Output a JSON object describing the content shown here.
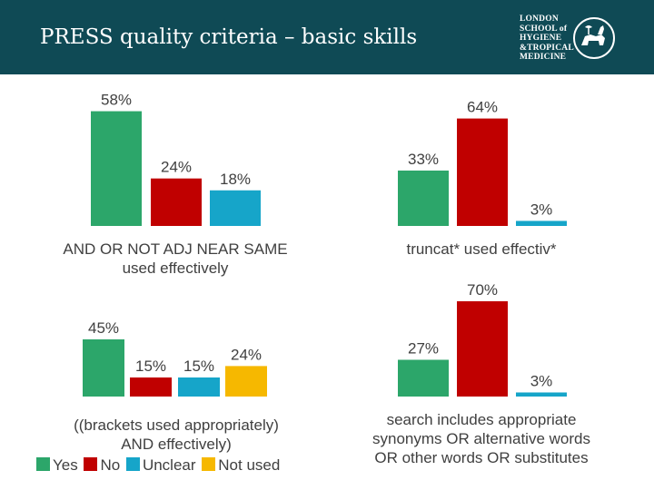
{
  "slide": {
    "title": "PRESS quality criteria – basic skills",
    "logo": {
      "lines": [
        "LONDON",
        "SCHOOL of",
        "HYGIENE",
        "&TROPICAL",
        "MEDICINE"
      ],
      "icon": "lshtm-crest-icon"
    }
  },
  "legend": [
    {
      "label": "Yes",
      "color": "#2ca66a"
    },
    {
      "label": "No",
      "color": "#c00000"
    },
    {
      "label": "Unclear",
      "color": "#16a5c9"
    },
    {
      "label": "Not used",
      "color": "#f6b800"
    }
  ],
  "chart_data": [
    {
      "type": "bar",
      "title": "AND OR NOT ADJ NEAR SAME used effectively",
      "categories": [
        "Yes",
        "No",
        "Unclear"
      ],
      "values": [
        58,
        24,
        18
      ],
      "labels": [
        "58%",
        "24%",
        "18%"
      ],
      "colors": [
        "#2ca66a",
        "#c00000",
        "#16a5c9"
      ]
    },
    {
      "type": "bar",
      "title": "truncat* used effectiv*",
      "categories": [
        "Yes",
        "No",
        "Unclear"
      ],
      "values": [
        33,
        64,
        3
      ],
      "labels": [
        "33%",
        "64%",
        "3%"
      ],
      "colors": [
        "#2ca66a",
        "#c00000",
        "#16a5c9"
      ]
    },
    {
      "type": "bar",
      "title": "((brackets used appropriately) AND effectively)",
      "categories": [
        "Yes",
        "No",
        "Unclear",
        "Not used"
      ],
      "values": [
        45,
        15,
        15,
        24
      ],
      "labels": [
        "45%",
        "15%",
        "15%",
        "24%"
      ],
      "colors": [
        "#2ca66a",
        "#c00000",
        "#16a5c9",
        "#f6b800"
      ]
    },
    {
      "type": "bar",
      "title": "search includes appropriate synonyms OR alternative words OR other words OR substitutes",
      "categories": [
        "Yes",
        "No",
        "Unclear"
      ],
      "values": [
        27,
        70,
        3
      ],
      "labels": [
        "27%",
        "70%",
        "3%"
      ],
      "colors": [
        "#2ca66a",
        "#c00000",
        "#16a5c9"
      ]
    }
  ],
  "captions": [
    [
      "AND OR NOT ADJ NEAR SAME",
      "used effectively"
    ],
    [
      "truncat* used effectiv*"
    ],
    [
      "((brackets used appropriately)",
      "AND effectively)"
    ],
    [
      "search includes appropriate",
      "synonyms OR alternative words",
      "OR other words OR substitutes"
    ]
  ]
}
